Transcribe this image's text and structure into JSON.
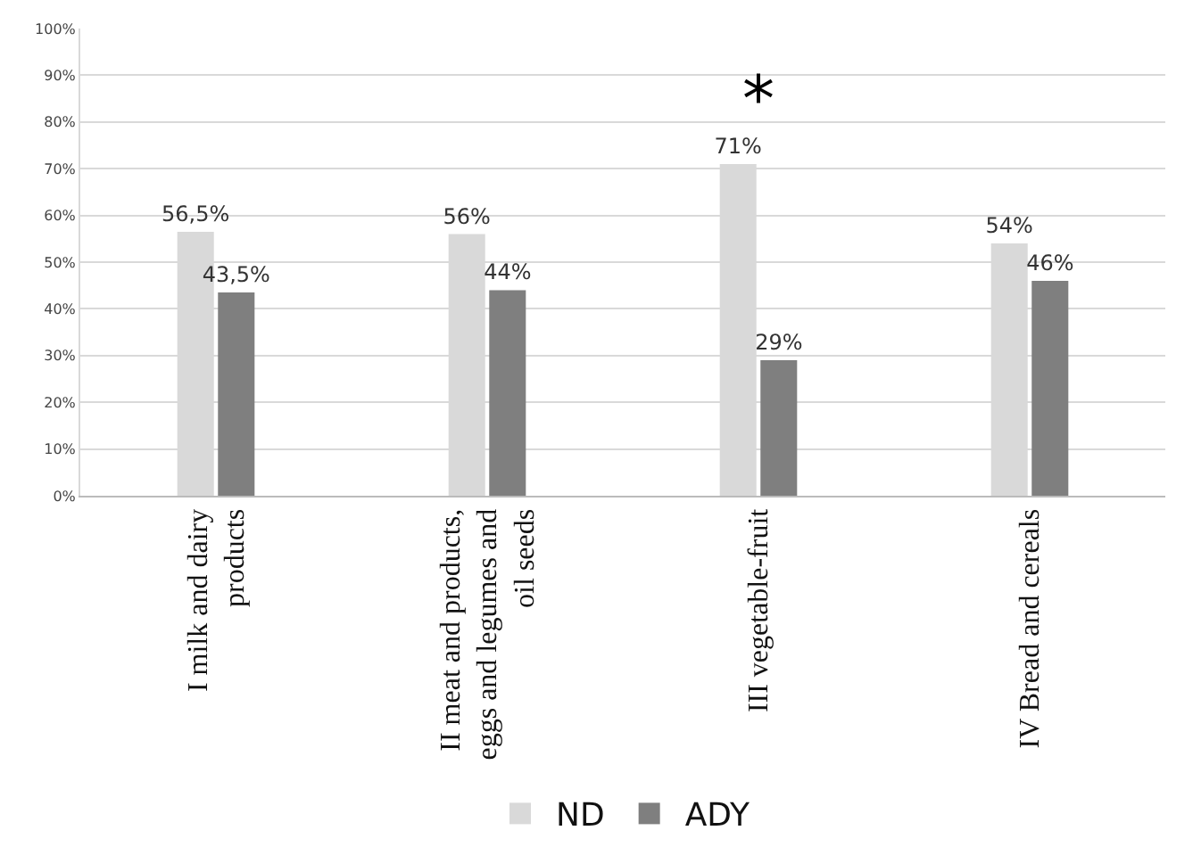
{
  "chart_data": {
    "type": "bar",
    "categories": [
      "I milk and dairy products",
      "II meat and products, eggs and legumes and oil seeds",
      "III vegetable-fruit",
      "IV Bread and cereals"
    ],
    "series": [
      {
        "name": "ND",
        "color": "#d9d9d9",
        "values": [
          56.5,
          56,
          71,
          54
        ],
        "value_labels": [
          "56,5%",
          "56%",
          "71%",
          "54%"
        ]
      },
      {
        "name": "ADY",
        "color": "#7f7f7f",
        "values": [
          43.5,
          44,
          29,
          46
        ],
        "value_labels": [
          "43,5%",
          "44%",
          "29%",
          "46%"
        ]
      }
    ],
    "ylim": [
      0,
      100
    ],
    "yticks": [
      {
        "value": 0,
        "label": "0%"
      },
      {
        "value": 10,
        "label": "10%"
      },
      {
        "value": 20,
        "label": "20%"
      },
      {
        "value": 30,
        "label": "30%"
      },
      {
        "value": 40,
        "label": "40%"
      },
      {
        "value": 50,
        "label": "50%"
      },
      {
        "value": 60,
        "label": "60%"
      },
      {
        "value": 70,
        "label": "70%"
      },
      {
        "value": 80,
        "label": "80%"
      },
      {
        "value": 90,
        "label": "90%"
      },
      {
        "value": 100,
        "label": "100%"
      }
    ],
    "grid": "y",
    "legend": "bottom",
    "annotations": [
      "*"
    ]
  }
}
